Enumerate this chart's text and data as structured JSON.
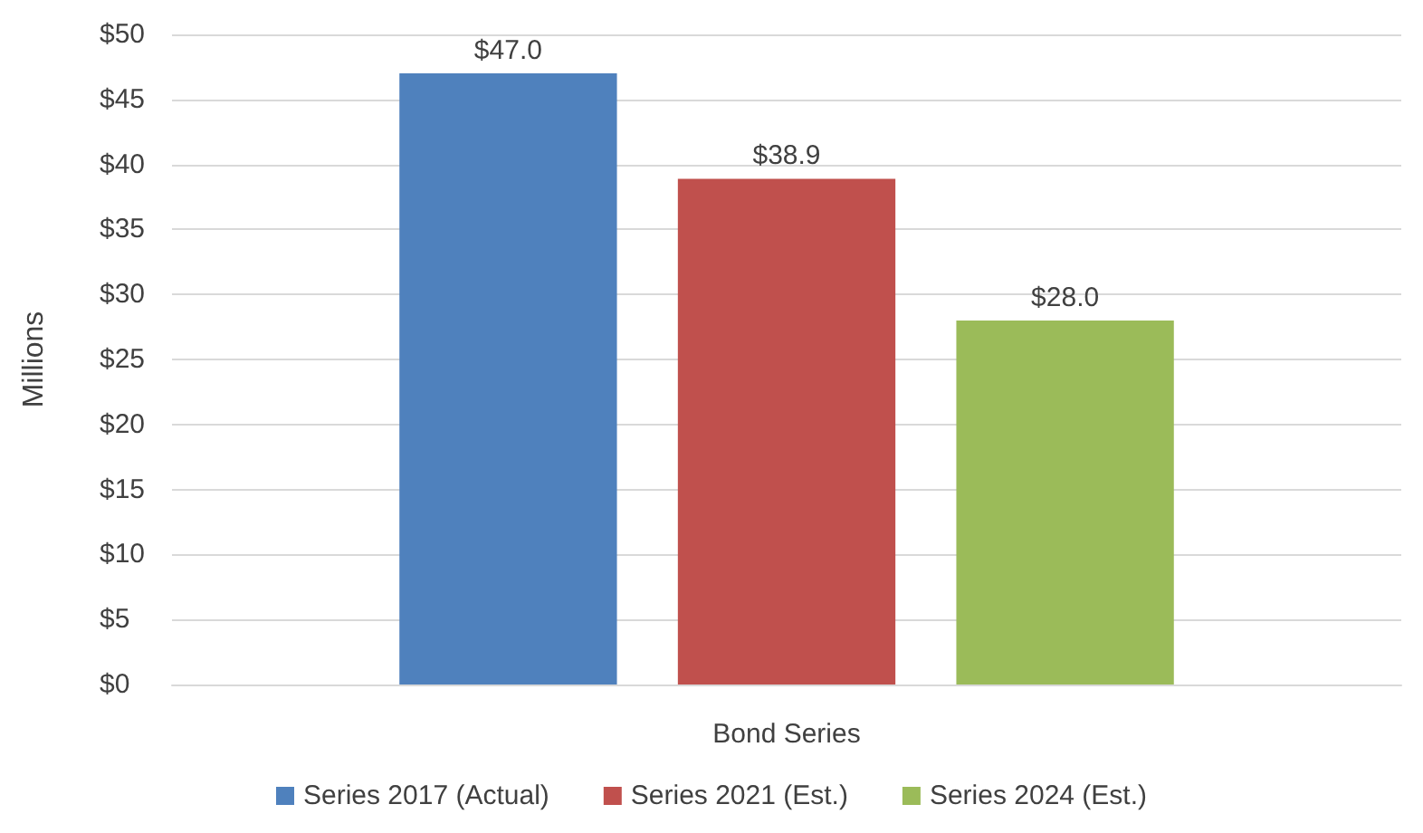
{
  "chart_data": {
    "type": "bar",
    "ylabel": "Millions",
    "categories": [
      "Bond Series"
    ],
    "series": [
      {
        "name": "Series 2017 (Actual)",
        "color": "#4f81bd",
        "values": [
          47.0
        ],
        "value_labels": [
          "$47.0"
        ]
      },
      {
        "name": "Series 2021 (Est.)",
        "color": "#c0504d",
        "values": [
          38.9
        ],
        "value_labels": [
          "$38.9"
        ]
      },
      {
        "name": "Series 2024 (Est.)",
        "color": "#9bbb59",
        "values": [
          28.0
        ],
        "value_labels": [
          "$28.0"
        ]
      }
    ],
    "ylim": [
      0,
      50
    ],
    "yticks": [
      {
        "value": 0,
        "label": "$0"
      },
      {
        "value": 5,
        "label": "$5"
      },
      {
        "value": 10,
        "label": "$10"
      },
      {
        "value": 15,
        "label": "$15"
      },
      {
        "value": 20,
        "label": "$20"
      },
      {
        "value": 25,
        "label": "$25"
      },
      {
        "value": 30,
        "label": "$30"
      },
      {
        "value": 35,
        "label": "$35"
      },
      {
        "value": 40,
        "label": "$40"
      },
      {
        "value": 45,
        "label": "$45"
      },
      {
        "value": 50,
        "label": "$50"
      }
    ],
    "grid": "y",
    "legend": "bottom"
  }
}
